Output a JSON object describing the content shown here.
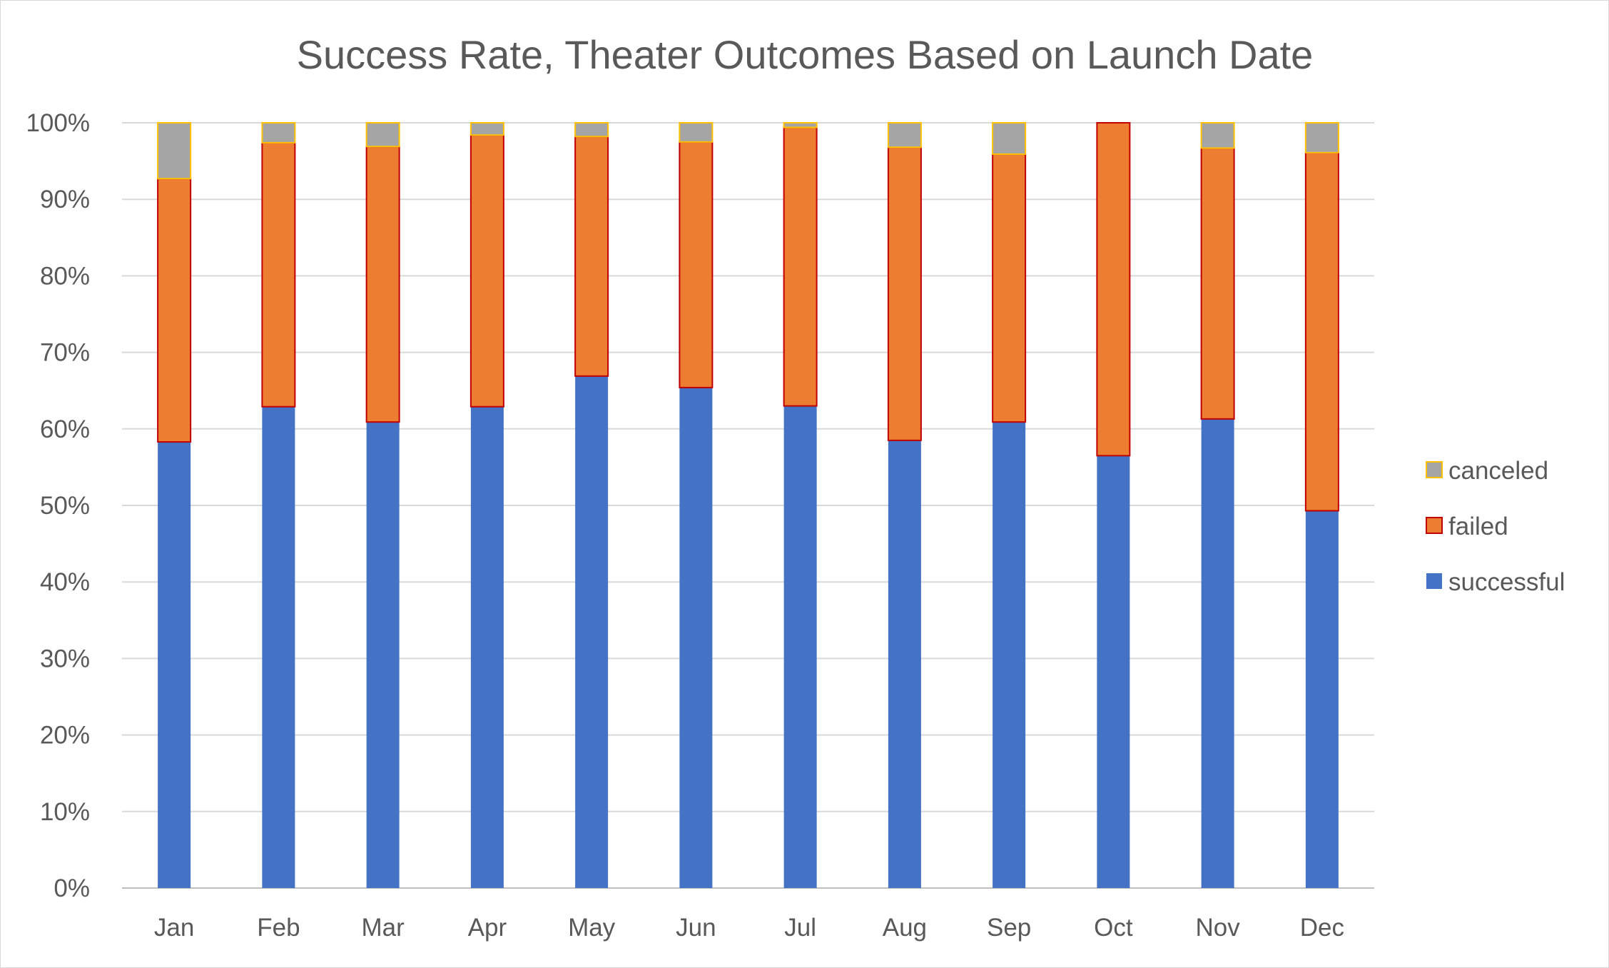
{
  "chart_data": {
    "type": "bar",
    "stacked": true,
    "percent": true,
    "title": "Success Rate, Theater Outcomes Based on Launch Date",
    "xlabel": "",
    "ylabel": "",
    "categories": [
      "Jan",
      "Feb",
      "Mar",
      "Apr",
      "May",
      "Jun",
      "Jul",
      "Aug",
      "Sep",
      "Oct",
      "Nov",
      "Dec"
    ],
    "series": [
      {
        "name": "successful",
        "color": "#4472c4",
        "edge_color": "#4472c4",
        "values": [
          58.3,
          62.9,
          60.9,
          62.9,
          66.9,
          65.4,
          63.0,
          58.5,
          60.9,
          56.5,
          61.3,
          49.3
        ]
      },
      {
        "name": "failed",
        "color": "#ed7d31",
        "edge_color": "#c00000",
        "values": [
          34.4,
          34.5,
          36.0,
          35.5,
          31.3,
          32.1,
          36.4,
          38.3,
          35.0,
          43.5,
          35.4,
          46.8
        ]
      },
      {
        "name": "canceled",
        "color": "#a5a5a5",
        "edge_color": "#ffc000",
        "values": [
          7.3,
          2.6,
          3.1,
          1.6,
          1.8,
          2.5,
          0.6,
          3.2,
          4.1,
          0.0,
          3.3,
          3.9
        ]
      }
    ],
    "y_ticks": [
      "0%",
      "10%",
      "20%",
      "30%",
      "40%",
      "50%",
      "60%",
      "70%",
      "80%",
      "90%",
      "100%"
    ],
    "ylim": [
      0,
      100
    ],
    "grid": true,
    "legend_position": "right",
    "legend_order": [
      "canceled",
      "failed",
      "successful"
    ]
  }
}
